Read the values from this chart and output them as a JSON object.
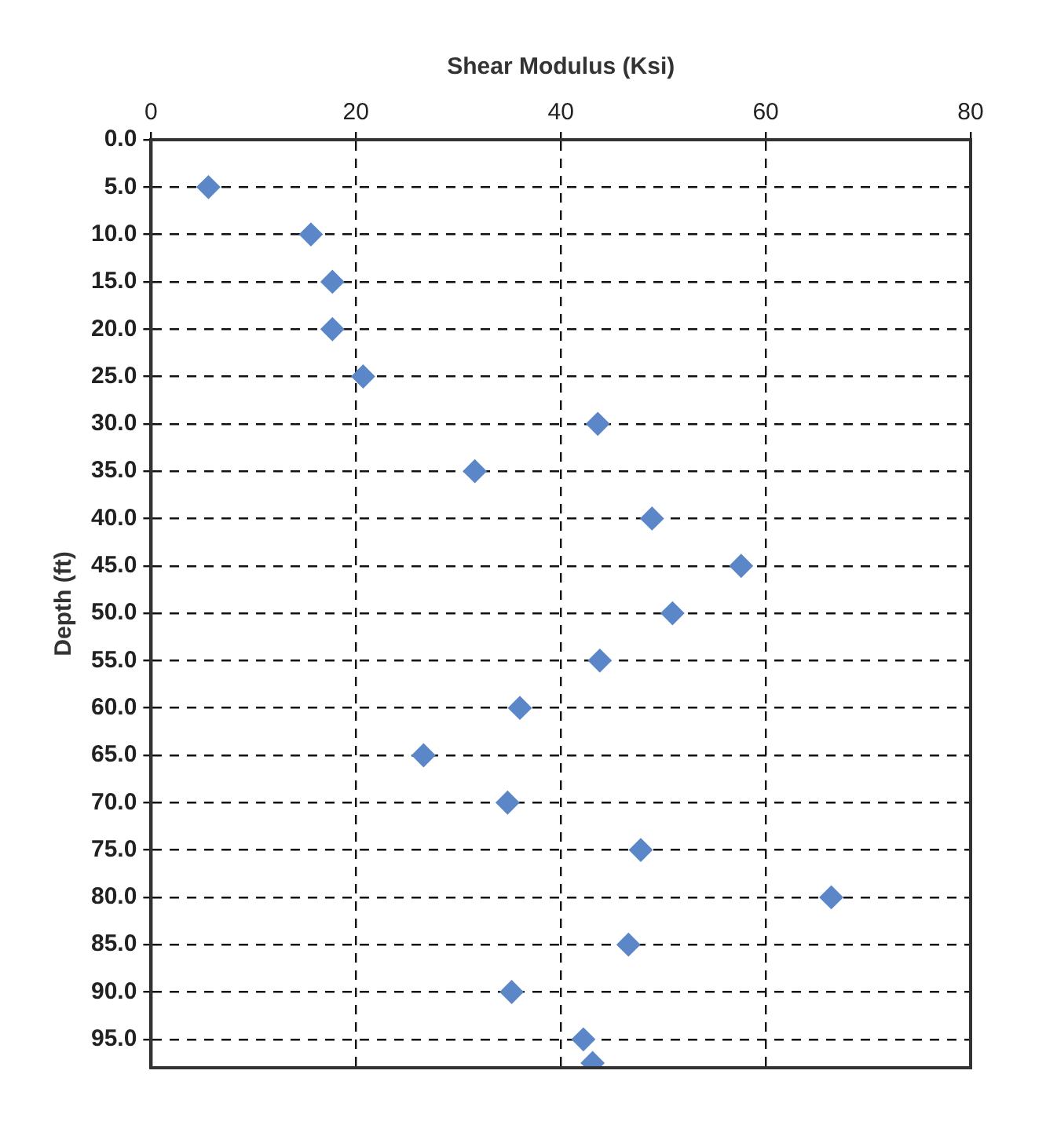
{
  "chart_data": {
    "type": "scatter",
    "xlabel": "Shear Modulus (Ksi)",
    "ylabel": "Depth (ft)",
    "series": [
      {
        "color": "#5b87c8",
        "x": [
          5.6,
          15.6,
          17.7,
          17.7,
          20.7,
          43.6,
          31.6,
          48.9,
          57.6,
          50.9,
          43.8,
          36,
          26.6,
          34.8,
          47.8,
          66.4,
          46.6,
          35.2,
          42.2,
          43.1
        ],
        "values": [
          5,
          10,
          15,
          20,
          25,
          30,
          35,
          40,
          45,
          50,
          55,
          60,
          65,
          70,
          75,
          80,
          85,
          90,
          95,
          97.5
        ]
      }
    ],
    "xlim": [
      0,
      80
    ],
    "xticks": [
      0,
      20,
      40,
      60,
      80
    ],
    "ylim": [
      98,
      0
    ],
    "yticks": [
      {
        "value": 0,
        "label": "0.0"
      },
      {
        "value": 5,
        "label": "5.0"
      },
      {
        "value": 10,
        "label": "10.0"
      },
      {
        "value": 15,
        "label": "15.0"
      },
      {
        "value": 20,
        "label": "20.0"
      },
      {
        "value": 25,
        "label": "25.0"
      },
      {
        "value": 30,
        "label": "30.0"
      },
      {
        "value": 35,
        "label": "35.0"
      },
      {
        "value": 40,
        "label": "40.0"
      },
      {
        "value": 45,
        "label": "45.0"
      },
      {
        "value": 50,
        "label": "50.0"
      },
      {
        "value": 55,
        "label": "55.0"
      },
      {
        "value": 60,
        "label": "60.0"
      },
      {
        "value": 65,
        "label": "65.0"
      },
      {
        "value": 70,
        "label": "70.0"
      },
      {
        "value": 75,
        "label": "75.0"
      },
      {
        "value": 80,
        "label": "80.0"
      },
      {
        "value": 85,
        "label": "85.0"
      },
      {
        "value": 90,
        "label": "90.0"
      },
      {
        "value": 95,
        "label": "95.0"
      }
    ],
    "grid": true,
    "marker": "diamond",
    "legend": false
  }
}
